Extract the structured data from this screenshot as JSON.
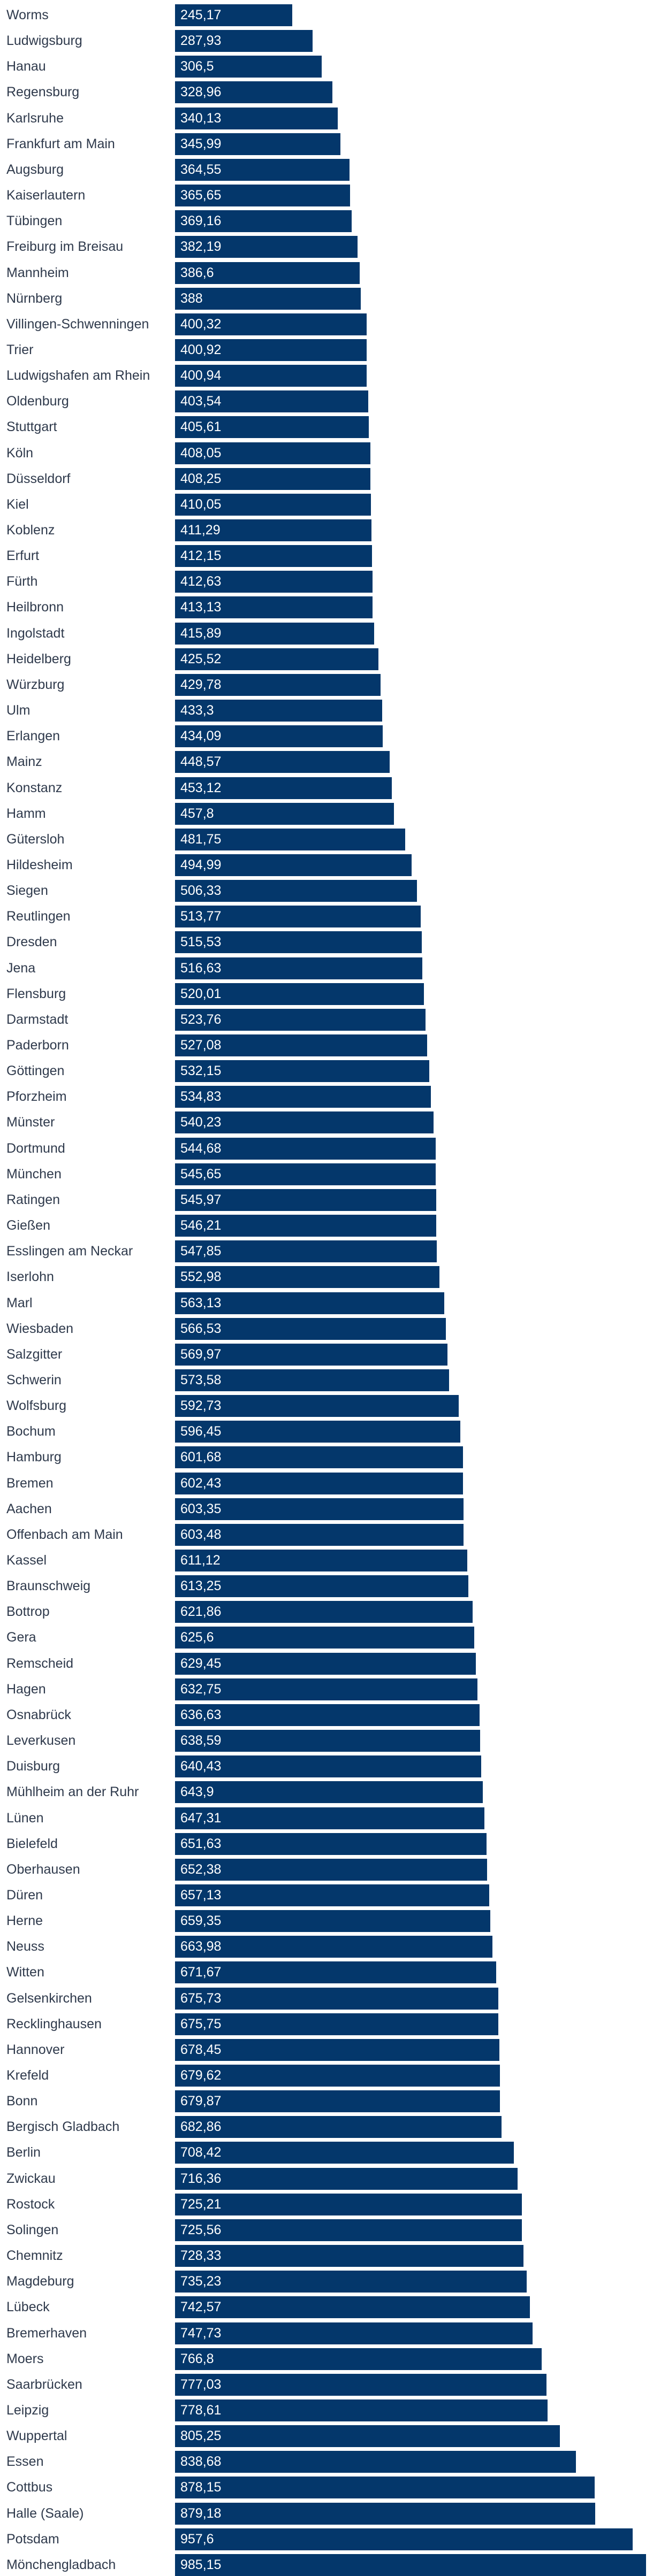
{
  "colors": {
    "bar": "#04376b",
    "category_text": "#2f3a4c",
    "value_text": "#ffffff",
    "background": "#ffffff"
  },
  "chart_data": {
    "type": "bar",
    "orientation": "horizontal",
    "title": "",
    "xlabel": "",
    "ylabel": "",
    "xlim": [
      0,
      985.15
    ],
    "grid": false,
    "legend": "none",
    "categories": [
      "Worms",
      "Ludwigsburg",
      "Hanau",
      "Regensburg",
      "Karlsruhe",
      "Frankfurt am Main",
      "Augsburg",
      "Kaiserlautern",
      "Tübingen",
      "Freiburg im Breisau",
      "Mannheim",
      "Nürnberg",
      "Villingen-Schwenningen",
      "Trier",
      "Ludwigshafen am Rhein",
      "Oldenburg",
      "Stuttgart",
      "Köln",
      "Düsseldorf",
      "Kiel",
      "Koblenz",
      "Erfurt",
      "Fürth",
      "Heilbronn",
      "Ingolstadt",
      "Heidelberg",
      "Würzburg",
      "Ulm",
      "Erlangen",
      "Mainz",
      "Konstanz",
      "Hamm",
      "Gütersloh",
      "Hildesheim",
      "Siegen",
      "Reutlingen",
      "Dresden",
      "Jena",
      "Flensburg",
      "Darmstadt",
      "Paderborn",
      "Göttingen",
      "Pforzheim",
      "Münster",
      "Dortmund",
      "München",
      "Ratingen",
      "Gießen",
      "Esslingen am Neckar",
      "Iserlohn",
      "Marl",
      "Wiesbaden",
      "Salzgitter",
      "Schwerin",
      "Wolfsburg",
      "Bochum",
      "Hamburg",
      "Bremen",
      "Aachen",
      "Offenbach am Main",
      "Kassel",
      "Braunschweig",
      "Bottrop",
      "Gera",
      "Remscheid",
      "Hagen",
      "Osnabrück",
      "Leverkusen",
      "Duisburg",
      "Mühlheim an der Ruhr",
      "Lünen",
      "Bielefeld",
      "Oberhausen",
      "Düren",
      "Herne",
      "Neuss",
      "Witten",
      "Gelsenkirchen",
      "Recklinghausen",
      "Hannover",
      "Krefeld",
      "Bonn",
      "Bergisch Gladbach",
      "Berlin",
      "Zwickau",
      "Rostock",
      "Solingen",
      "Chemnitz",
      "Magdeburg",
      "Lübeck",
      "Bremerhaven",
      "Moers",
      "Saarbrücken",
      "Leipzig",
      "Wuppertal",
      "Essen",
      "Cottbus",
      "Halle (Saale)",
      "Potsdam",
      "Mönchengladbach"
    ],
    "values": [
      245.17,
      287.93,
      306.5,
      328.96,
      340.13,
      345.99,
      364.55,
      365.65,
      369.16,
      382.19,
      386.6,
      388,
      400.32,
      400.92,
      400.94,
      403.54,
      405.61,
      408.05,
      408.25,
      410.05,
      411.29,
      412.15,
      412.63,
      413.13,
      415.89,
      425.52,
      429.78,
      433.3,
      434.09,
      448.57,
      453.12,
      457.8,
      481.75,
      494.99,
      506.33,
      513.77,
      515.53,
      516.63,
      520.01,
      523.76,
      527.08,
      532.15,
      534.83,
      540.23,
      544.68,
      545.65,
      545.97,
      546.21,
      547.85,
      552.98,
      563.13,
      566.53,
      569.97,
      573.58,
      592.73,
      596.45,
      601.68,
      602.43,
      603.35,
      603.48,
      611.12,
      613.25,
      621.86,
      625.6,
      629.45,
      632.75,
      636.63,
      638.59,
      640.43,
      643.9,
      647.31,
      651.63,
      652.38,
      657.13,
      659.35,
      663.98,
      671.67,
      675.73,
      675.75,
      678.45,
      679.62,
      679.87,
      682.86,
      708.42,
      716.36,
      725.21,
      725.56,
      728.33,
      735.23,
      742.57,
      747.73,
      766.8,
      777.03,
      778.61,
      805.25,
      838.68,
      878.15,
      879.18,
      957.6,
      985.15
    ],
    "value_labels": [
      "245,17",
      "287,93",
      "306,5",
      "328,96",
      "340,13",
      "345,99",
      "364,55",
      "365,65",
      "369,16",
      "382,19",
      "386,6",
      "388",
      "400,32",
      "400,92",
      "400,94",
      "403,54",
      "405,61",
      "408,05",
      "408,25",
      "410,05",
      "411,29",
      "412,15",
      "412,63",
      "413,13",
      "415,89",
      "425,52",
      "429,78",
      "433,3",
      "434,09",
      "448,57",
      "453,12",
      "457,8",
      "481,75",
      "494,99",
      "506,33",
      "513,77",
      "515,53",
      "516,63",
      "520,01",
      "523,76",
      "527,08",
      "532,15",
      "534,83",
      "540,23",
      "544,68",
      "545,65",
      "545,97",
      "546,21",
      "547,85",
      "552,98",
      "563,13",
      "566,53",
      "569,97",
      "573,58",
      "592,73",
      "596,45",
      "601,68",
      "602,43",
      "603,35",
      "603,48",
      "611,12",
      "613,25",
      "621,86",
      "625,6",
      "629,45",
      "632,75",
      "636,63",
      "638,59",
      "640,43",
      "643,9",
      "647,31",
      "651,63",
      "652,38",
      "657,13",
      "659,35",
      "663,98",
      "671,67",
      "675,73",
      "675,75",
      "678,45",
      "679,62",
      "679,87",
      "682,86",
      "708,42",
      "716,36",
      "725,21",
      "725,56",
      "728,33",
      "735,23",
      "742,57",
      "747,73",
      "766,8",
      "777,03",
      "778,61",
      "805,25",
      "838,68",
      "878,15",
      "879,18",
      "957,6",
      "985,15"
    ]
  }
}
